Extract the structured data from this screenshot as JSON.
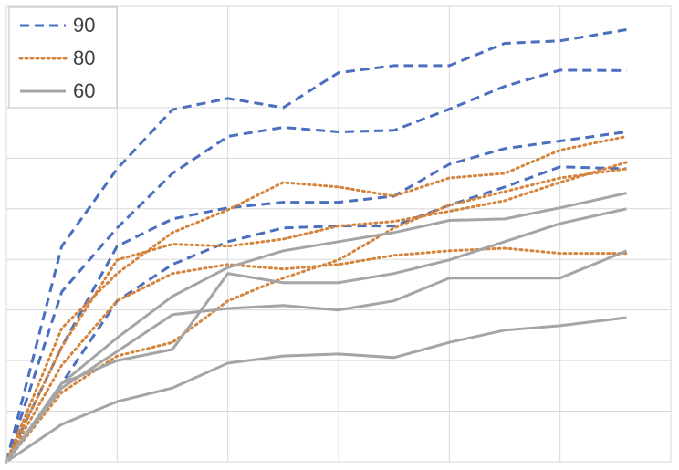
{
  "chart_data": {
    "type": "line",
    "x": [
      0,
      0.5,
      1,
      1.5,
      2,
      2.5,
      3,
      3.5,
      4,
      4.5,
      5,
      5.6
    ],
    "xlim": [
      0,
      6
    ],
    "xticks": [
      0,
      1,
      2,
      3,
      4,
      5,
      6
    ],
    "ylim": [
      0,
      9
    ],
    "yticks": [
      0,
      1,
      2,
      3,
      4,
      5,
      6,
      7,
      8,
      9
    ],
    "grid": true,
    "legend": "top-left",
    "series": [
      {
        "name": "90",
        "color": "#4a6fbe",
        "style": "dashed",
        "lines": [
          [
            0,
            4.26,
            5.79,
            6.96,
            7.18,
            7.0,
            7.69,
            7.83,
            7.83,
            8.27,
            8.32,
            8.54
          ],
          [
            0,
            3.36,
            4.62,
            5.7,
            6.43,
            6.61,
            6.52,
            6.55,
            6.97,
            7.42,
            7.74,
            7.73
          ],
          [
            0,
            2.27,
            4.26,
            4.8,
            5.02,
            5.13,
            5.13,
            5.25,
            5.88,
            6.19,
            6.34,
            6.52
          ],
          [
            0,
            1.55,
            3.18,
            3.9,
            4.35,
            4.62,
            4.66,
            4.66,
            5.07,
            5.43,
            5.83,
            5.79
          ]
        ]
      },
      {
        "name": "80",
        "color": "#d4843c",
        "style": "dotted",
        "lines": [
          [
            0,
            2.64,
            3.72,
            4.53,
            4.98,
            5.52,
            5.43,
            5.25,
            5.61,
            5.7,
            6.16,
            6.43
          ],
          [
            0,
            2.27,
            3.99,
            4.3,
            4.26,
            4.4,
            4.66,
            4.75,
            4.95,
            5.16,
            5.52,
            5.92
          ],
          [
            0,
            1.91,
            3.18,
            3.72,
            3.9,
            3.81,
            3.9,
            4.08,
            4.17,
            4.22,
            4.12,
            4.12
          ],
          [
            0,
            1.37,
            2.09,
            2.36,
            3.18,
            3.63,
            3.99,
            4.62,
            5.07,
            5.34,
            5.61,
            5.79
          ]
        ]
      },
      {
        "name": "60",
        "color": "#a5a5a5",
        "style": "solid",
        "lines": [
          [
            0,
            1.55,
            2.45,
            3.27,
            3.84,
            4.17,
            4.35,
            4.53,
            4.77,
            4.8,
            5.02,
            5.31
          ],
          [
            0,
            1.46,
            2.18,
            2.91,
            3.03,
            3.09,
            3.0,
            3.18,
            3.63,
            3.63,
            3.63,
            4.17
          ],
          [
            0,
            1.55,
            2.0,
            2.22,
            3.72,
            3.54,
            3.54,
            3.72,
            3.99,
            4.35,
            4.71,
            5.0
          ],
          [
            0,
            0.74,
            1.19,
            1.46,
            1.95,
            2.09,
            2.13,
            2.06,
            2.36,
            2.6,
            2.69,
            2.85
          ]
        ]
      }
    ]
  }
}
